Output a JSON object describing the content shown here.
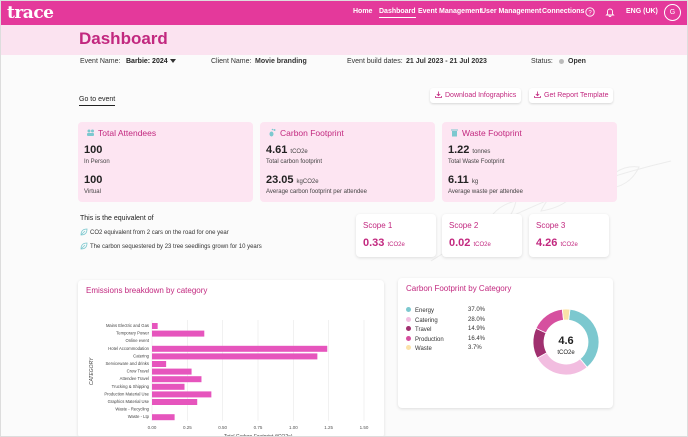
{
  "nav": {
    "logo": "trace",
    "items": [
      {
        "label": "Home",
        "active": false
      },
      {
        "label": "Dashboard",
        "active": true
      },
      {
        "label": "Event Management",
        "active": false
      },
      {
        "label": "User Management",
        "active": false
      },
      {
        "label": "Connections",
        "active": false
      }
    ],
    "language": "ENG (UK)",
    "avatar_initial": "G"
  },
  "page": {
    "title": "Dashboard",
    "event_name_label": "Event Name:",
    "event_name_value": "Barbie: 2024",
    "client_name_label": "Client Name:",
    "client_name_value": "Movie branding",
    "build_dates_label": "Event build dates:",
    "build_dates_value": "21 Jul 2023 - 21 Jul 2023",
    "status_label": "Status:",
    "status_value": "Open",
    "goto_event": "Go to event",
    "download_infographics": "Download Infographics",
    "get_report_template": "Get Report Template"
  },
  "cards": {
    "attendees": {
      "title": "Total Attendees",
      "in_person_value": "100",
      "in_person_label": "In Person",
      "virtual_value": "100",
      "virtual_label": "Virtual"
    },
    "carbon": {
      "title": "Carbon Footprint",
      "total_value": "4.61",
      "total_unit": "tCO2e",
      "total_label": "Total carbon footprint",
      "avg_value": "23.05",
      "avg_unit": "kgCO2e",
      "avg_label": "Average carbon footprint per attendee"
    },
    "waste": {
      "title": "Waste Footprint",
      "total_value": "1.22",
      "total_unit": "tonnes",
      "total_label": "Total Waste Footprint",
      "avg_value": "6.11",
      "avg_unit": "kg",
      "avg_label": "Average waste per attendee"
    }
  },
  "equivalent": {
    "title": "This is the equivalent of",
    "line1": "CO2 equivalent from 2 cars on the road for one year",
    "line2": "The carbon sequestered by 23 tree seedlings grown for 10 years"
  },
  "scopes": [
    {
      "title": "Scope 1",
      "value": "0.33",
      "unit": "tCO2e"
    },
    {
      "title": "Scope 2",
      "value": "0.02",
      "unit": "tCO2e"
    },
    {
      "title": "Scope 3",
      "value": "4.26",
      "unit": "tCO2e"
    }
  ],
  "colors": {
    "brand": "#e4399b",
    "accent": "#c2287f",
    "card_bg": "#fde5f2",
    "bar": "#e655bd"
  },
  "chart_data": [
    {
      "type": "bar",
      "orientation": "horizontal",
      "title": "Emissions breakdown by category",
      "xlabel": "Total Carbon Footprint (tCO2e)",
      "ylabel": "CATEGORY",
      "xlim": [
        0,
        1.5
      ],
      "xticks": [
        "0.00",
        "0.25",
        "0.50",
        "0.75",
        "1.00",
        "1.25",
        "1.50"
      ],
      "categories": [
        "Mains Electric and Gas",
        "Temporary Power",
        "Online event",
        "Hotel Accommodation",
        "Catering",
        "Serviceware and drinks",
        "Crew Travel",
        "Attendee Travel",
        "Trucking & Shipping",
        "Production Material Use",
        "Graphics Material Use",
        "Waste - Recycling",
        "Waste - Ltp"
      ],
      "values": [
        0.04,
        0.37,
        0.0,
        1.24,
        1.17,
        0.1,
        0.28,
        0.35,
        0.23,
        0.42,
        0.32,
        0.0,
        0.16
      ]
    },
    {
      "type": "pie",
      "title": "Carbon Footprint by Category",
      "center_value": "4.6",
      "center_unit": "tCO2e",
      "labels": [
        "Energy",
        "Catering",
        "Travel",
        "Production",
        "Waste"
      ],
      "values": [
        37.0,
        28.0,
        14.9,
        16.4,
        3.7
      ],
      "display_values": [
        "37.0%",
        "28.0%",
        "14.9%",
        "16.4%",
        "3.7%"
      ],
      "colors": [
        "#7cc8cf",
        "#f2bde0",
        "#a0306f",
        "#d6509f",
        "#fbe2a8"
      ]
    }
  ]
}
